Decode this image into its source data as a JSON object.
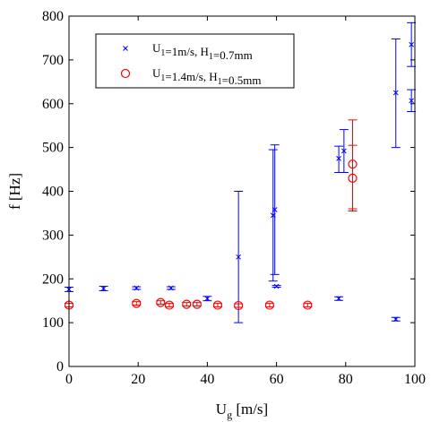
{
  "chart_data": {
    "type": "scatter",
    "xlabel": {
      "main": "U",
      "sub": "g",
      "rest": " [m/s]"
    },
    "ylabel": "f [Hz]",
    "xlim": [
      0,
      100
    ],
    "ylim": [
      0,
      800
    ],
    "xticks": [
      "0",
      "20",
      "40",
      "60",
      "80",
      "100"
    ],
    "yticks": [
      "0",
      "100",
      "200",
      "300",
      "400",
      "500",
      "600",
      "700",
      "800"
    ],
    "legend_position": "top-left",
    "series": [
      {
        "legend": [
          {
            "t": "U",
            "sub": false
          },
          {
            "t": "1",
            "sub": true
          },
          {
            "t": "=1m/s, H",
            "sub": false
          },
          {
            "t": "1",
            "sub": true
          },
          {
            "t": "=0.7mm",
            "sub": false
          }
        ],
        "marker": "x",
        "color": "#0000ff",
        "points": [
          {
            "x": 0,
            "y": 176,
            "err": [
              171,
              181
            ]
          },
          {
            "x": 10,
            "y": 178,
            "err": [
              173,
              183
            ]
          },
          {
            "x": 19.5,
            "y": 179,
            "err": [
              176,
              182
            ]
          },
          {
            "x": 29.5,
            "y": 179,
            "err": [
              176,
              182
            ]
          },
          {
            "x": 40,
            "y": 155,
            "err": [
              150,
              160
            ]
          },
          {
            "x": 49,
            "y": 250,
            "err": [
              100,
              400
            ]
          },
          {
            "x": 59,
            "y": 345,
            "err": [
              195,
              495
            ]
          },
          {
            "x": 59.5,
            "y": 358,
            "err": [
              210,
              506
            ]
          },
          {
            "x": 60,
            "y": 183,
            "err": [
              181,
              185
            ]
          },
          {
            "x": 78,
            "y": 475,
            "err": [
              443,
              503
            ]
          },
          {
            "x": 79.5,
            "y": 492,
            "err": [
              443,
              541
            ]
          },
          {
            "x": 78,
            "y": 155,
            "err": [
              151,
              159
            ]
          },
          {
            "x": 94.5,
            "y": 625,
            "err": [
              500,
              748
            ]
          },
          {
            "x": 94.5,
            "y": 108,
            "err": [
              104,
              112
            ]
          },
          {
            "x": 99,
            "y": 735,
            "err": [
              685,
              785
            ]
          },
          {
            "x": 99,
            "y": 607,
            "err": [
              582,
              632
            ]
          }
        ]
      },
      {
        "legend": [
          {
            "t": "U",
            "sub": false
          },
          {
            "t": "1",
            "sub": true
          },
          {
            "t": "=1.4m/s, H",
            "sub": false
          },
          {
            "t": "1",
            "sub": true
          },
          {
            "t": "=0.5mm",
            "sub": false
          }
        ],
        "marker": "o",
        "color": "#ff0000",
        "points": [
          {
            "x": 0,
            "y": 140,
            "err": [
              136,
              144
            ]
          },
          {
            "x": 19.5,
            "y": 144,
            "err": [
              140,
              148
            ]
          },
          {
            "x": 26.5,
            "y": 146,
            "err": [
              142,
              150
            ]
          },
          {
            "x": 29,
            "y": 140,
            "err": [
              136,
              144
            ]
          },
          {
            "x": 34,
            "y": 142,
            "err": [
              138,
              146
            ]
          },
          {
            "x": 37,
            "y": 142,
            "err": [
              138,
              146
            ]
          },
          {
            "x": 43,
            "y": 140,
            "err": [
              136,
              144
            ]
          },
          {
            "x": 49,
            "y": 139,
            "err": [
              135,
              143
            ]
          },
          {
            "x": 58,
            "y": 140,
            "err": [
              136,
              144
            ]
          },
          {
            "x": 69,
            "y": 140,
            "err": [
              136,
              144
            ]
          },
          {
            "x": 82,
            "y": 462,
            "err": [
              360,
              563
            ]
          },
          {
            "x": 82,
            "y": 430,
            "err": [
              355,
              505
            ]
          }
        ]
      }
    ]
  }
}
